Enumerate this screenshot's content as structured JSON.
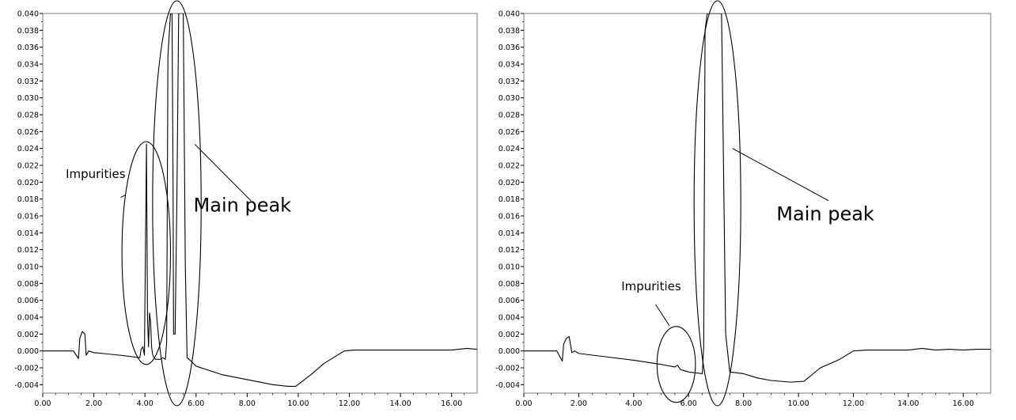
{
  "chart_data": [
    {
      "type": "line",
      "xlim": [
        0,
        17
      ],
      "ylim": [
        -0.005,
        0.04
      ],
      "xticks": [
        "0.00",
        "2.00",
        "4.00",
        "6.00",
        "8.00",
        "10.00",
        "12.00",
        "14.00",
        "16.00"
      ],
      "yticks": [
        "-0.004",
        "-0.002",
        "0.000",
        "0.002",
        "0.004",
        "0.006",
        "0.008",
        "0.010",
        "0.012",
        "0.014",
        "0.016",
        "0.018",
        "0.020",
        "0.022",
        "0.024",
        "0.026",
        "0.028",
        "0.030",
        "0.032",
        "0.034",
        "0.036",
        "0.038",
        "0.040"
      ],
      "grid": false,
      "series": [
        {
          "x": [
            0.0,
            1.2,
            1.4,
            1.45,
            1.55,
            1.65,
            1.7,
            1.8,
            2.0,
            3.0,
            3.8,
            3.85,
            3.92,
            3.98,
            4.02,
            4.06,
            4.1,
            4.14,
            4.18,
            4.22,
            4.26,
            4.3,
            4.36,
            4.42,
            4.6,
            4.7,
            4.8,
            4.85,
            4.9,
            5.0,
            5.06,
            5.1,
            5.12,
            5.18,
            5.25,
            5.32,
            5.38,
            5.42,
            5.5,
            5.58,
            5.65,
            5.8,
            6.0,
            7.0,
            8.0,
            9.0,
            9.6,
            9.9,
            10.5,
            11.0,
            11.8,
            12.2,
            13.0,
            14.0,
            15.0,
            16.0,
            16.6,
            17.0
          ],
          "y": [
            0.0,
            0.0,
            -0.0009,
            0.0015,
            0.0023,
            0.002,
            -0.0005,
            0.0,
            -0.0002,
            -0.0005,
            -0.0008,
            0.0002,
            0.0005,
            -0.0005,
            0.012,
            0.0245,
            0.004,
            0.0005,
            0.0045,
            0.0035,
            0.0005,
            -0.0004,
            -0.0008,
            -0.001,
            -0.001,
            -0.0008,
            -0.001,
            0.001,
            0.035,
            0.04,
            0.04,
            0.02,
            0.002,
            0.002,
            0.018,
            0.04,
            0.04,
            0.04,
            0.04,
            0.01,
            -0.0008,
            -0.0012,
            -0.0018,
            -0.0028,
            -0.0034,
            -0.004,
            -0.0042,
            -0.0042,
            -0.0028,
            -0.0015,
            0.0,
            0.0001,
            0.0001,
            0.0001,
            0.0001,
            0.0001,
            0.0003,
            0.0002
          ]
        }
      ],
      "annotations": [
        {
          "text": "Impurities",
          "ellipse": {
            "cx": 4.05,
            "cy": 0.0116,
            "rx": 0.95,
            "ry": 0.0132
          },
          "label_at": [
            0.9,
            0.0205
          ],
          "leader_from": [
            3.05,
            0.0182
          ],
          "leader_to": [
            3.25,
            0.0185
          ],
          "font": 15
        },
        {
          "text": "Main peak",
          "ellipse": {
            "cx": 5.25,
            "cy": 0.0175,
            "rx": 0.95,
            "ry": 0.024
          },
          "label_at": [
            5.9,
            0.0165
          ],
          "leader_from": [
            8.15,
            0.0178
          ],
          "leader_to": [
            5.95,
            0.0245
          ],
          "font": 24
        }
      ]
    },
    {
      "type": "line",
      "xlim": [
        0,
        17
      ],
      "ylim": [
        -0.005,
        0.04
      ],
      "xticks": [
        "0.00",
        "2.00",
        "4.00",
        "6.00",
        "8.00",
        "10.00",
        "12.00",
        "14.00",
        "16.00"
      ],
      "yticks": [
        "-0.004",
        "-0.002",
        "0.000",
        "0.002",
        "0.004",
        "0.006",
        "0.008",
        "0.010",
        "0.012",
        "0.014",
        "0.016",
        "0.018",
        "0.020",
        "0.022",
        "0.024",
        "0.026",
        "0.028",
        "0.030",
        "0.032",
        "0.034",
        "0.036",
        "0.038",
        "0.040"
      ],
      "grid": false,
      "series": [
        {
          "x": [
            0.0,
            1.2,
            1.4,
            1.45,
            1.55,
            1.65,
            1.75,
            1.85,
            2.0,
            3.0,
            4.0,
            5.0,
            5.5,
            5.6,
            5.7,
            5.8,
            6.0,
            6.5,
            6.55,
            6.6,
            6.68,
            6.75,
            6.85,
            6.95,
            7.0,
            7.1,
            7.2,
            7.35,
            7.5,
            8.0,
            8.5,
            9.0,
            9.7,
            10.2,
            10.8,
            11.5,
            12.0,
            12.5,
            13.0,
            14.0,
            14.5,
            15.0,
            15.5,
            16.0,
            16.5,
            17.0
          ],
          "y": [
            0.0,
            0.0,
            -0.0012,
            0.0008,
            0.0015,
            0.0017,
            -0.0002,
            0.0,
            -0.0003,
            -0.0007,
            -0.0011,
            -0.0016,
            -0.0019,
            -0.0017,
            -0.0022,
            -0.0023,
            -0.0025,
            -0.0027,
            0.0005,
            0.038,
            0.04,
            0.04,
            0.04,
            0.04,
            0.04,
            0.04,
            0.04,
            0.002,
            -0.0025,
            -0.0027,
            -0.0032,
            -0.0035,
            -0.0037,
            -0.0036,
            -0.002,
            -0.001,
            0.0,
            0.0001,
            0.0001,
            0.0001,
            0.0003,
            0.0001,
            0.0002,
            0.0001,
            0.0002,
            0.0002
          ]
        }
      ],
      "annotations": [
        {
          "text": "Impurities",
          "ellipse": {
            "cx": 5.55,
            "cy": -0.0016,
            "rx": 0.7,
            "ry": 0.0045
          },
          "label_at": [
            3.55,
            0.0072
          ],
          "leader_from": [
            4.8,
            0.0055
          ],
          "leader_to": [
            5.3,
            0.003
          ],
          "font": 15
        },
        {
          "text": "Main peak",
          "ellipse": {
            "cx": 7.05,
            "cy": 0.0175,
            "rx": 0.85,
            "ry": 0.024
          },
          "label_at": [
            9.2,
            0.0155
          ],
          "leader_from": [
            11.1,
            0.0178
          ],
          "leader_to": [
            7.6,
            0.024
          ],
          "font": 24
        }
      ]
    }
  ]
}
